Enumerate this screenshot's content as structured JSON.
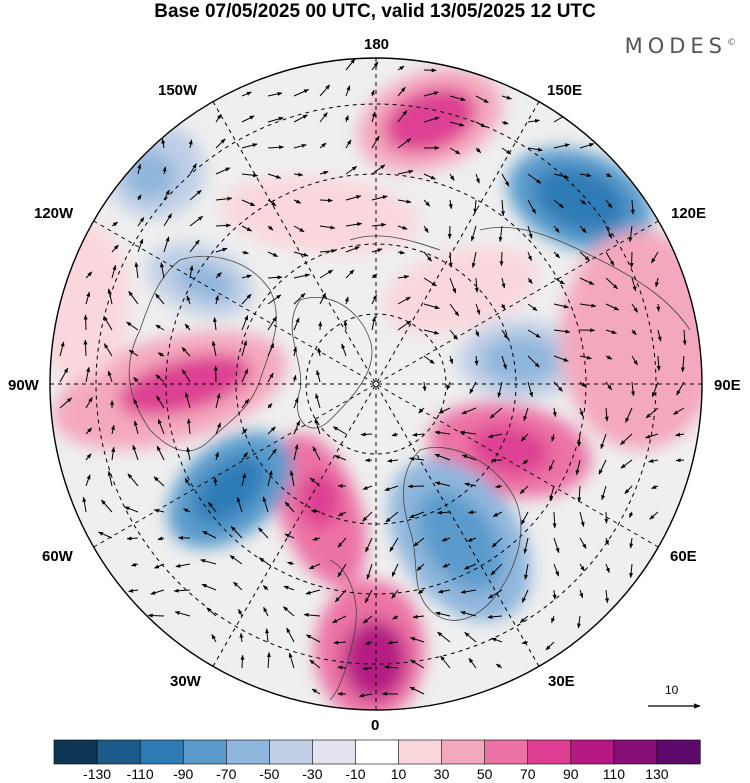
{
  "title": "Base 07/05/2025 00 UTC, valid 13/05/2025 12 UTC",
  "brand": "MODES",
  "brand_mark": "©",
  "longitude_labels": {
    "top": "180",
    "bottom": "0",
    "left": "90W",
    "right": "90E",
    "upper_left_1": "150W",
    "upper_left_2": "120W",
    "upper_right_1": "150E",
    "upper_right_2": "120E",
    "lower_left_1": "60W",
    "lower_left_2": "30W",
    "lower_right_1": "60E",
    "lower_right_2": "30E"
  },
  "reference_vector": {
    "label": "10"
  },
  "colorbar": {
    "ticks": [
      "-130",
      "-110",
      "-90",
      "-70",
      "-50",
      "-30",
      "-10",
      "10",
      "30",
      "50",
      "70",
      "90",
      "110",
      "130"
    ],
    "colors": [
      "#0e3553",
      "#1c5a8a",
      "#2f7bb6",
      "#5a9bcc",
      "#8fb6dc",
      "#c0cfe6",
      "#e3e3ef",
      "#ffffff",
      "#f9d7dc",
      "#f4a8bd",
      "#ec72a4",
      "#de3f93",
      "#b51a84",
      "#880f78",
      "#5b0a6b"
    ]
  },
  "colors": {
    "neutral": "#efefef",
    "land_outline": "#444444"
  }
}
